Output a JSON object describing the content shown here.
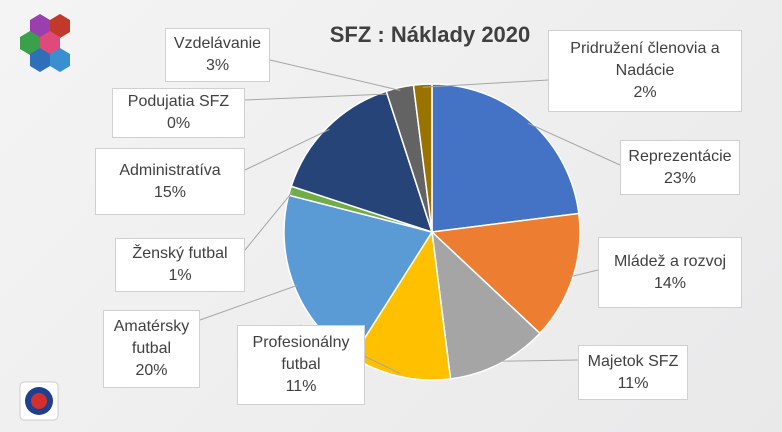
{
  "chart_data": {
    "type": "pie",
    "title": "SFZ : Náklady 2020",
    "categories": [
      "Reprezentácie",
      "Mládež a rozvoj",
      "Majetok SFZ",
      "Profesionálny futbal",
      "Amatérsky futbal",
      "Ženský futbal",
      "Administratíva",
      "Podujatia SFZ",
      "Vzdelávanie",
      "Pridružení členovia a Nadácie"
    ],
    "values": [
      23,
      14,
      11,
      11,
      20,
      1,
      15,
      0,
      3,
      2
    ],
    "value_labels": [
      "23%",
      "14%",
      "11%",
      "11%",
      "20%",
      "1%",
      "15%",
      "0%",
      "3%",
      "2%"
    ],
    "colors": [
      "#4472c4",
      "#ed7d31",
      "#a5a5a5",
      "#ffc000",
      "#5b9bd5",
      "#70ad47",
      "#264478",
      "#9e480e",
      "#636363",
      "#997300"
    ]
  }
}
